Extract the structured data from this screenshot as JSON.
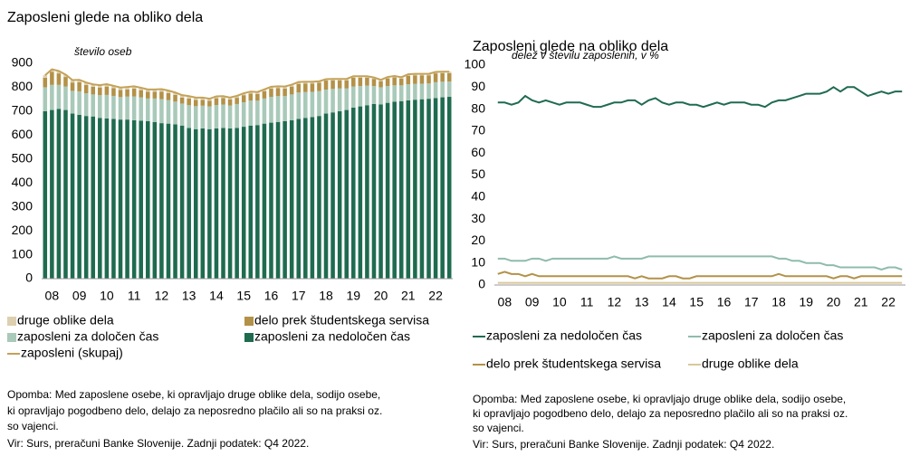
{
  "chart_data": [
    {
      "type": "bar",
      "stacked": true,
      "title": "Zaposleni glede na obliko dela",
      "y_label": "število oseb",
      "categories": [
        null,
        "08",
        null,
        null,
        null,
        "09",
        null,
        null,
        null,
        "10",
        null,
        null,
        null,
        "11",
        null,
        null,
        null,
        "12",
        null,
        null,
        null,
        "13",
        null,
        null,
        null,
        "14",
        null,
        null,
        null,
        "15",
        null,
        null,
        null,
        "16",
        null,
        null,
        null,
        "17",
        null,
        null,
        null,
        "18",
        null,
        null,
        null,
        "19",
        null,
        null,
        null,
        "20",
        null,
        null,
        null,
        "21",
        null,
        null,
        null,
        "22",
        null,
        null
      ],
      "ylim": [
        0,
        900
      ],
      "yticks": [
        0,
        100,
        200,
        300,
        400,
        500,
        600,
        700,
        800,
        900
      ],
      "grid": false,
      "series": [
        {
          "name": "zaposleni za nedoločen čas",
          "color": "#1f6b50",
          "type": "bar",
          "values": [
            700,
            705,
            710,
            705,
            690,
            685,
            680,
            678,
            672,
            670,
            668,
            665,
            665,
            662,
            660,
            658,
            655,
            650,
            648,
            645,
            640,
            630,
            625,
            628,
            625,
            628,
            630,
            628,
            630,
            635,
            640,
            642,
            648,
            652,
            655,
            658,
            662,
            668,
            672,
            675,
            680,
            690,
            695,
            700,
            705,
            715,
            720,
            725,
            730,
            728,
            735,
            740,
            742,
            745,
            748,
            750,
            752,
            755,
            758,
            760
          ]
        },
        {
          "name": "zaposleni za določen čas",
          "color": "#a9c9b9",
          "type": "bar",
          "values": [
            100,
            105,
            100,
            98,
            95,
            98,
            95,
            92,
            95,
            98,
            96,
            94,
            96,
            100,
            98,
            95,
            98,
            100,
            98,
            95,
            92,
            95,
            96,
            95,
            95,
            98,
            98,
            96,
            100,
            102,
            104,
            102,
            105,
            108,
            108,
            105,
            108,
            110,
            108,
            106,
            104,
            100,
            98,
            95,
            90,
            88,
            85,
            82,
            75,
            72,
            70,
            68,
            66,
            68,
            66,
            65,
            64,
            66,
            65,
            64
          ]
        },
        {
          "name": "delo prek študentskega servisa",
          "color": "#b39148",
          "type": "bar",
          "values": [
            40,
            55,
            48,
            40,
            35,
            38,
            35,
            32,
            32,
            35,
            32,
            30,
            30,
            32,
            30,
            28,
            28,
            32,
            30,
            28,
            25,
            28,
            26,
            24,
            24,
            28,
            27,
            25,
            26,
            30,
            30,
            28,
            30,
            34,
            33,
            32,
            33,
            36,
            35,
            34,
            35,
            38,
            36,
            34,
            34,
            37,
            35,
            33,
            30,
            25,
            32,
            33,
            28,
            35,
            36,
            35,
            34,
            37,
            36,
            35
          ]
        },
        {
          "name": "druge oblike dela",
          "color": "#ddd0b0",
          "type": "bar",
          "values": [
            10,
            10,
            10,
            10,
            10,
            10,
            10,
            10,
            10,
            10,
            10,
            10,
            10,
            10,
            10,
            10,
            10,
            10,
            10,
            10,
            10,
            10,
            10,
            10,
            8,
            8,
            8,
            8,
            8,
            8,
            8,
            8,
            8,
            8,
            8,
            8,
            8,
            8,
            8,
            8,
            6,
            6,
            6,
            6,
            6,
            6,
            6,
            6,
            6,
            6,
            6,
            6,
            6,
            6,
            6,
            6,
            6,
            6,
            6,
            6
          ]
        },
        {
          "name": "zaposleni (skupaj)",
          "color": "#c4a25a",
          "type": "line",
          "values": [
            850,
            875,
            868,
            853,
            830,
            831,
            820,
            812,
            809,
            813,
            806,
            799,
            801,
            804,
            798,
            791,
            791,
            792,
            786,
            778,
            767,
            763,
            757,
            757,
            752,
            762,
            763,
            757,
            764,
            775,
            782,
            780,
            791,
            802,
            804,
            803,
            811,
            822,
            823,
            823,
            825,
            834,
            835,
            835,
            835,
            846,
            846,
            846,
            841,
            831,
            843,
            847,
            842,
            854,
            856,
            856,
            856,
            864,
            865,
            865
          ]
        }
      ],
      "note": [
        "Opomba: Med zaposlene osebe, ki opravljajo druge oblike dela, sodijo osebe,",
        "ki opravljajo pogodbeno delo, delajo za neposredno plačilo ali so na praksi oz.",
        "so vajenci."
      ],
      "source": "Vir: Surs, preračuni Banke Slovenije. Zadnji podatek: Q4 2022."
    },
    {
      "type": "line",
      "title": "Zaposleni glede na obliko dela",
      "y_label": "delež v številu zaposlenih, v %",
      "categories": [
        null,
        "08",
        null,
        null,
        null,
        "09",
        null,
        null,
        null,
        "10",
        null,
        null,
        null,
        "11",
        null,
        null,
        null,
        "12",
        null,
        null,
        null,
        "13",
        null,
        null,
        null,
        "14",
        null,
        null,
        null,
        "15",
        null,
        null,
        null,
        "16",
        null,
        null,
        null,
        "17",
        null,
        null,
        null,
        "18",
        null,
        null,
        null,
        "19",
        null,
        null,
        null,
        "20",
        null,
        null,
        null,
        "21",
        null,
        null,
        null,
        "22",
        null,
        null
      ],
      "ylim": [
        0,
        100
      ],
      "yticks": [
        0,
        10,
        20,
        30,
        40,
        50,
        60,
        70,
        80,
        90,
        100
      ],
      "grid": false,
      "series": [
        {
          "name": "zaposleni za nedoločen čas",
          "color": "#1f6b50",
          "type": "line",
          "values": [
            83,
            83,
            82,
            83,
            86,
            84,
            83,
            84,
            83,
            82,
            83,
            83,
            83,
            82,
            81,
            81,
            82,
            83,
            83,
            84,
            84,
            82,
            84,
            85,
            83,
            82,
            83,
            83,
            82,
            82,
            81,
            82,
            83,
            82,
            83,
            83,
            83,
            82,
            82,
            81,
            83,
            84,
            84,
            85,
            86,
            87,
            87,
            87,
            88,
            90,
            88,
            90,
            90,
            88,
            86,
            87,
            88,
            87,
            88,
            88
          ]
        },
        {
          "name": "zaposleni za določen čas",
          "color": "#8fbcab",
          "type": "line",
          "values": [
            12,
            12,
            11,
            11,
            11,
            12,
            12,
            11,
            12,
            12,
            12,
            12,
            12,
            12,
            12,
            12,
            12,
            13,
            12,
            12,
            12,
            12,
            13,
            13,
            13,
            13,
            13,
            13,
            13,
            13,
            13,
            13,
            13,
            13,
            13,
            13,
            13,
            13,
            13,
            13,
            13,
            12,
            12,
            11,
            11,
            10,
            10,
            10,
            9,
            9,
            8,
            8,
            8,
            8,
            8,
            8,
            7,
            8,
            8,
            7
          ]
        },
        {
          "name": "delo prek študentskega servisa",
          "color": "#b39148",
          "type": "line",
          "values": [
            5,
            6,
            5,
            5,
            4,
            5,
            4,
            4,
            4,
            4,
            4,
            4,
            4,
            4,
            4,
            4,
            4,
            4,
            4,
            4,
            3,
            4,
            3,
            3,
            3,
            4,
            4,
            3,
            3,
            4,
            4,
            4,
            4,
            4,
            4,
            4,
            4,
            4,
            4,
            4,
            4,
            5,
            4,
            4,
            4,
            4,
            4,
            4,
            4,
            3,
            4,
            4,
            3,
            4,
            4,
            4,
            4,
            4,
            4,
            4
          ]
        },
        {
          "name": "druge oblike dela",
          "color": "#d9c89a",
          "type": "line",
          "values": [
            1,
            1,
            1,
            1,
            1,
            1,
            1,
            1,
            1,
            1,
            1,
            1,
            1,
            1,
            1,
            1,
            1,
            1,
            1,
            1,
            1,
            1,
            1,
            1,
            1,
            1,
            1,
            1,
            1,
            1,
            1,
            1,
            1,
            1,
            1,
            1,
            1,
            1,
            1,
            1,
            1,
            1,
            1,
            1,
            1,
            1,
            1,
            1,
            1,
            1,
            1,
            1,
            1,
            1,
            1,
            1,
            1,
            1,
            1,
            1
          ]
        }
      ],
      "note": [
        "Opomba: Med zaposlene osebe, ki opravljajo druge oblike dela, sodijo osebe,",
        "ki opravljajo pogodbeno delo, delajo za neposredno plačilo ali so na praksi oz.",
        "so vajenci."
      ],
      "source": "Vir: Surs, preračuni Banke Slovenije. Zadnji podatek: Q4 2022."
    }
  ]
}
